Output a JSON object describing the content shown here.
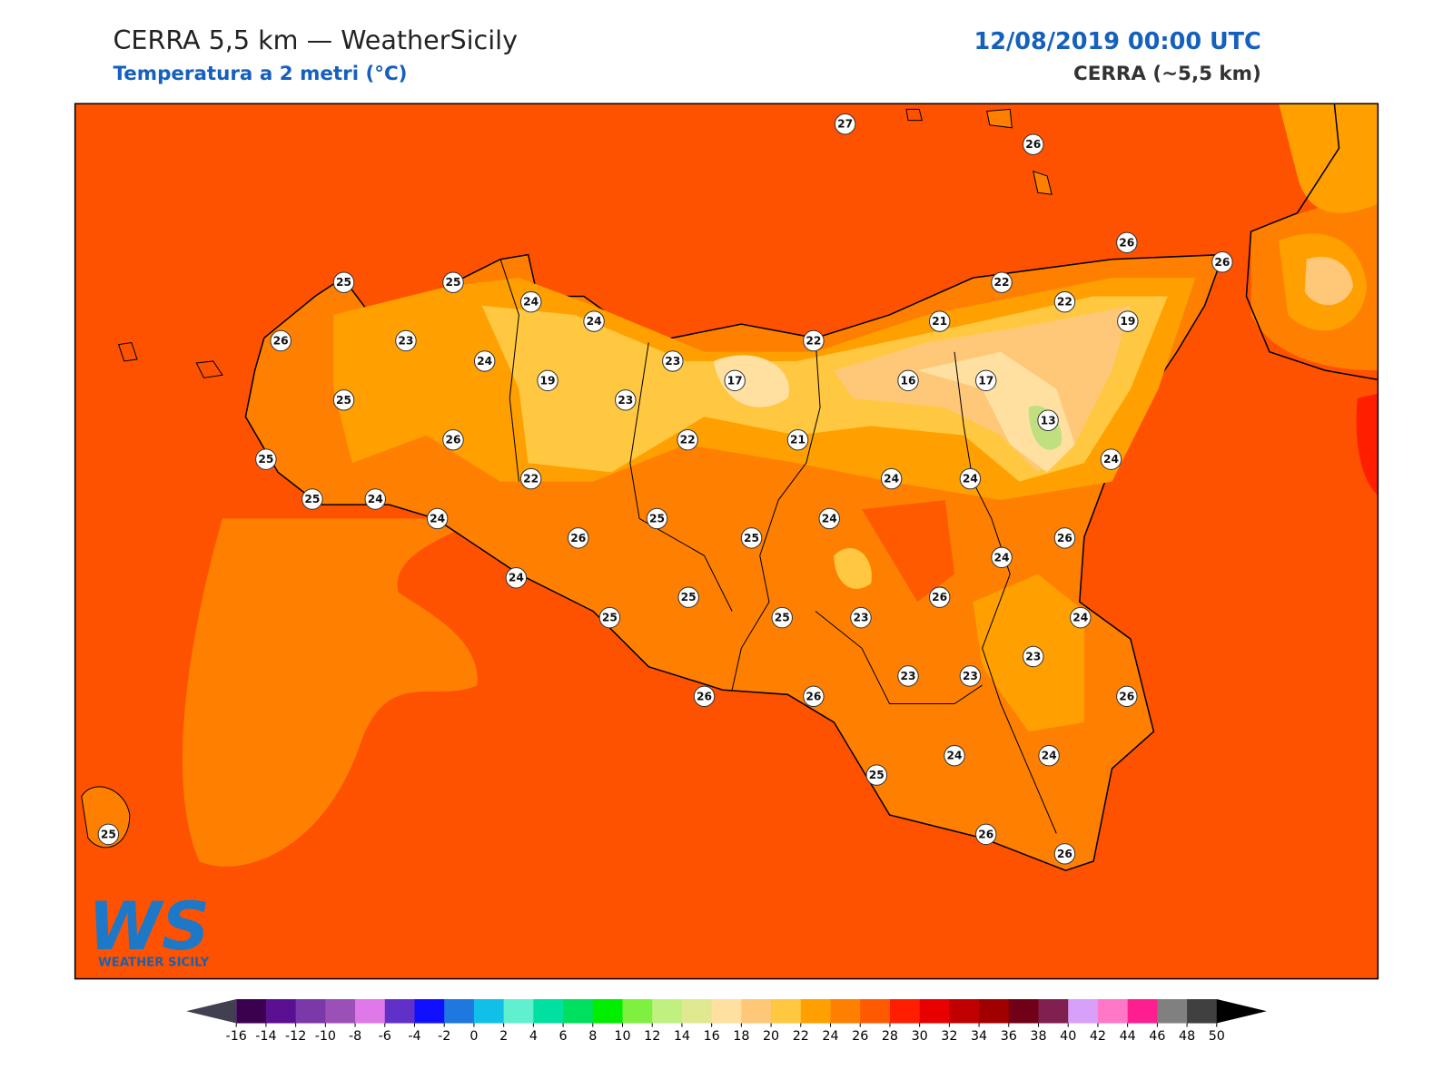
{
  "header": {
    "title": "CERRA 5,5 km — WeatherSicily",
    "subtitle": "Temperatura a 2 metri (°C)",
    "datetime": "12/08/2019 00:00 UTC",
    "model": "CERRA (~5,5 km)"
  },
  "stations": [
    27,
    26,
    26,
    26,
    25,
    25,
    24,
    24,
    22,
    22,
    19,
    21,
    22,
    26,
    23,
    24,
    23,
    19,
    17,
    16,
    17,
    25,
    23,
    13,
    26,
    22,
    21,
    25,
    24,
    24,
    24,
    22,
    25,
    24,
    24,
    25,
    24,
    26,
    25,
    26,
    24,
    24,
    25,
    26,
    25,
    25,
    23,
    24,
    23,
    23,
    23,
    26,
    26,
    26,
    24,
    24,
    25,
    25,
    26,
    26
  ],
  "colorbar": {
    "ticks": [
      -16,
      -14,
      -12,
      -10,
      -8,
      -6,
      -4,
      -2,
      0,
      2,
      4,
      6,
      8,
      10,
      12,
      14,
      16,
      18,
      20,
      22,
      24,
      26,
      28,
      30,
      32,
      34,
      36,
      38,
      40,
      42,
      44,
      46,
      48,
      50
    ],
    "colors": [
      "#3c0050",
      "#5a1090",
      "#7b38a8",
      "#9d4fb8",
      "#df78e8",
      "#6030c8",
      "#1010ff",
      "#1e78e0",
      "#10c0e8",
      "#60f0d0",
      "#00e0a0",
      "#00e060",
      "#00ee00",
      "#80f040",
      "#c0f080",
      "#e0e890",
      "#ffe0a0",
      "#ffc878",
      "#ffc840",
      "#ffa000",
      "#ff8000",
      "#ff5a00",
      "#ff1e00",
      "#e80000",
      "#c00000",
      "#a00000",
      "#700018",
      "#802050",
      "#d8a0f8",
      "#ff78c8",
      "#ff1e90",
      "#808080",
      "#404040"
    ],
    "under_color": "#404050",
    "over_color": "#000000"
  },
  "logo": {
    "mark": "WS",
    "text": "WEATHER SICILY"
  }
}
